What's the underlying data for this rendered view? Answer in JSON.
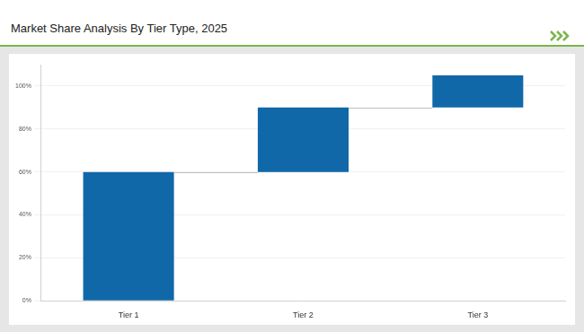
{
  "chart_data": {
    "type": "waterfall",
    "title": "Market Share Analysis By Tier Type, 2025",
    "categories": [
      "Tier 1",
      "Tier 2",
      "Tier 3"
    ],
    "values": [
      60,
      30,
      15
    ],
    "color": "#1068a8",
    "ylim": [
      0,
      110
    ],
    "yticks": [
      {
        "value": 0,
        "label": "0%"
      },
      {
        "value": 20,
        "label": "20%"
      },
      {
        "value": 40,
        "label": "40%"
      },
      {
        "value": 60,
        "label": "60%"
      },
      {
        "value": 80,
        "label": "80%"
      },
      {
        "value": 100,
        "label": "100%"
      }
    ],
    "grid": true
  }
}
